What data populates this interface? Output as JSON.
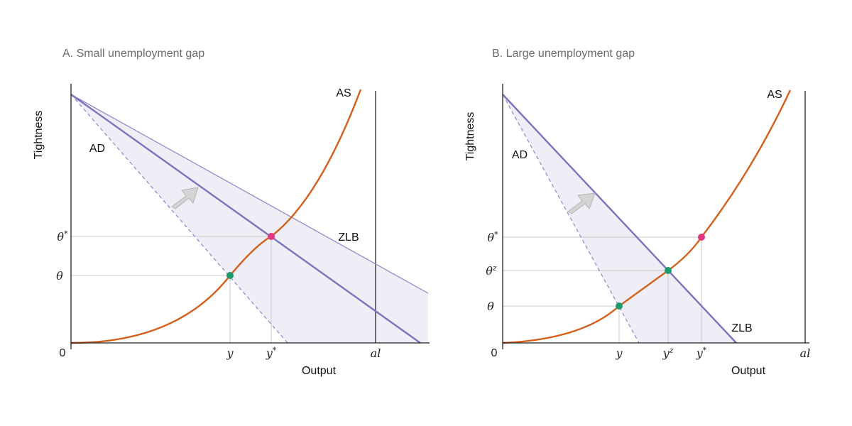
{
  "colors": {
    "as_curve": "#d35f1a",
    "ad_curve": "#7b73bd",
    "shading": "#ece9f5",
    "point_equilibrium": "#1e9a6e",
    "point_target": "#e0357f",
    "axes": "#222222",
    "guides": "#c8c8c8"
  },
  "panels": [
    {
      "title": "A. Small unemployment gap",
      "y_axis_label": "Tightness",
      "x_axis_label": "Output",
      "origin_label": "0",
      "curve_labels": {
        "as": "AS",
        "ad": "AD",
        "zlb": "ZLB"
      },
      "y_ticks": [
        "θ*",
        "θ"
      ],
      "x_ticks": [
        "y",
        "y*",
        "al"
      ],
      "markers": [
        {
          "label": "equilibrium (y, θ)",
          "color": "#1e9a6e"
        },
        {
          "label": "efficient (y*, θ*)",
          "color": "#e0357f"
        }
      ],
      "shift_arrow": "gray-up-right-arrow"
    },
    {
      "title": "B. Large unemployment gap",
      "y_axis_label": "Tightness",
      "x_axis_label": "Output",
      "origin_label": "0",
      "curve_labels": {
        "as": "AS",
        "ad": "AD",
        "zlb": "ZLB"
      },
      "y_ticks": [
        "θ*",
        "θ^z",
        "θ"
      ],
      "x_ticks": [
        "y",
        "y^z",
        "y*",
        "al"
      ],
      "markers": [
        {
          "label": "equilibrium (y, θ)",
          "color": "#1e9a6e"
        },
        {
          "label": "ZLB equilibrium (y^z, θ^z)",
          "color": "#1e9a6e"
        },
        {
          "label": "efficient (y*, θ*)",
          "color": "#e0357f"
        }
      ],
      "shift_arrow": "gray-up-right-arrow"
    }
  ]
}
